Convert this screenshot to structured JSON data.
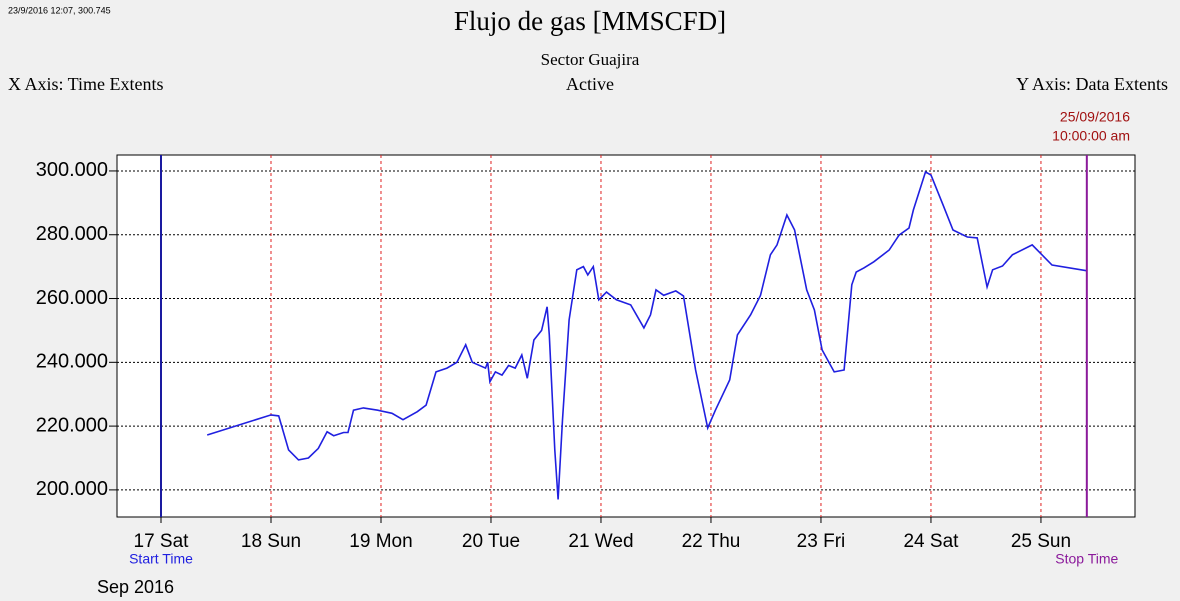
{
  "chart_data": {
    "type": "line",
    "annotation": "23/9/2016 12:07, 300.745",
    "title": "Flujo de gas [MMSCFD]",
    "subtitle": "Sector Guajira",
    "x_axis_mode": "X Axis: Time Extents",
    "status": "Active",
    "y_axis_mode": "Y Axis: Data Extents",
    "x_axis_label": "Sep 2016",
    "stop_date": "25/09/2016",
    "stop_clock": "10:00:00 am",
    "markers": [
      {
        "label": "Start Time",
        "x": 17,
        "color": "#1a1aa0",
        "label_color": "#2020e0"
      },
      {
        "label": "Stop Time",
        "x": 25.417,
        "color": "#8b1a9b",
        "label_color": "#8b1a9b"
      }
    ],
    "x": [
      17.42,
      18.0,
      18.07,
      18.16,
      18.25,
      18.34,
      18.43,
      18.51,
      18.57,
      18.66,
      18.7,
      18.75,
      18.84,
      18.97,
      19.1,
      19.2,
      19.33,
      19.41,
      19.5,
      19.6,
      19.69,
      19.77,
      19.83,
      19.95,
      19.97,
      19.99,
      20.04,
      20.1,
      20.16,
      20.22,
      20.28,
      20.33,
      20.39,
      20.46,
      20.51,
      20.53,
      20.58,
      20.61,
      20.65,
      20.71,
      20.78,
      20.84,
      20.88,
      20.93,
      20.98,
      21.05,
      21.14,
      21.27,
      21.39,
      21.45,
      21.5,
      21.57,
      21.68,
      21.75,
      21.86,
      21.97,
      22.04,
      22.17,
      22.24,
      22.36,
      22.45,
      22.54,
      22.6,
      22.69,
      22.76,
      22.87,
      22.94,
      23.01,
      23.12,
      23.21,
      23.28,
      23.32,
      23.39,
      23.48,
      23.62,
      23.71,
      23.8,
      23.84,
      23.95,
      24.0,
      24.11,
      24.2,
      24.33,
      24.42,
      24.51,
      24.56,
      24.65,
      24.74,
      24.92,
      25.1,
      25.42
    ],
    "series": [
      {
        "name": "Flujo de gas",
        "color": "#2020e0",
        "values": [
          217.2,
          223.5,
          223.2,
          212.5,
          209.4,
          210,
          213,
          218.2,
          217,
          218,
          218,
          225,
          225.7,
          225,
          224,
          222,
          224.5,
          226.6,
          237,
          238.2,
          240,
          245.5,
          240,
          238.2,
          240,
          233.9,
          237,
          236,
          239,
          238.2,
          242.3,
          235,
          247,
          250,
          257.4,
          248.6,
          212.5,
          197,
          222,
          253.3,
          269,
          270,
          267.4,
          270,
          259.6,
          262,
          259.6,
          258,
          250.8,
          254.9,
          262.7,
          261,
          262.4,
          260.8,
          237.6,
          219.4,
          225,
          234.5,
          248.6,
          254.9,
          261,
          273.7,
          276.8,
          286.2,
          281.5,
          262.7,
          256.4,
          243.9,
          237,
          237.6,
          264.3,
          268.3,
          269.6,
          271.5,
          275.2,
          279.9,
          282.1,
          287.8,
          299.7,
          298.7,
          289.3,
          281.5,
          279.3,
          279,
          263.6,
          269,
          270.2,
          273.7,
          276.8,
          270.5,
          268.7
        ]
      }
    ],
    "xlim": [
      16.6,
      25.855
    ],
    "xticks": [
      {
        "value": 17,
        "label": "17 Sat"
      },
      {
        "value": 18,
        "label": "18 Sun"
      },
      {
        "value": 19,
        "label": "19 Mon"
      },
      {
        "value": 20,
        "label": "20 Tue"
      },
      {
        "value": 21,
        "label": "21 Wed"
      },
      {
        "value": 22,
        "label": "22 Thu"
      },
      {
        "value": 23,
        "label": "23 Fri"
      },
      {
        "value": 24,
        "label": "24 Sat"
      },
      {
        "value": 25,
        "label": "25 Sun"
      }
    ],
    "ylim": [
      191.5,
      305
    ],
    "yticks": [
      {
        "value": 200,
        "label": "200.000"
      },
      {
        "value": 220,
        "label": "220.000"
      },
      {
        "value": 240,
        "label": "240.000"
      },
      {
        "value": 260,
        "label": "260.000"
      },
      {
        "value": 280,
        "label": "280.000"
      },
      {
        "value": 300,
        "label": "300.000"
      }
    ],
    "grid": true
  }
}
